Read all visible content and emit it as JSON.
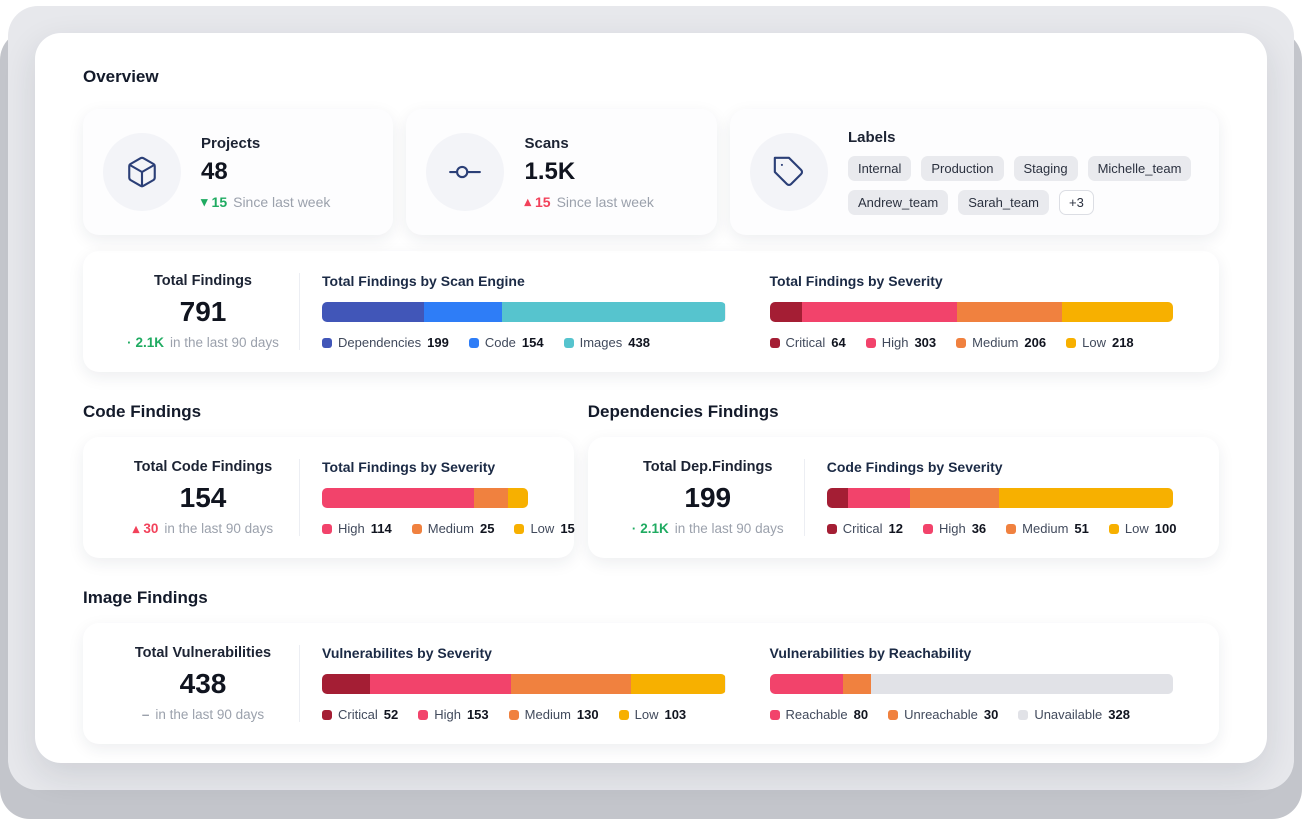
{
  "page": {
    "title": "Overview"
  },
  "stat_cards": {
    "projects": {
      "label": "Projects",
      "value": "48",
      "trend": {
        "marker": "down",
        "value": "15",
        "color": "#1fab61",
        "suffix": "Since last week"
      }
    },
    "scans": {
      "label": "Scans",
      "value": "1.5K",
      "trend": {
        "marker": "up",
        "value": "15",
        "color": "#f2415a",
        "suffix": "Since last week"
      }
    },
    "labels": {
      "label": "Labels",
      "chips": [
        "Internal",
        "Production",
        "Staging",
        "Michelle_team",
        "Andrew_team",
        "Sarah_team",
        "+3"
      ]
    }
  },
  "total_findings": {
    "summary": {
      "label": "Total Findings",
      "value": "791",
      "trend": {
        "marker": "dot",
        "value": "2.1K",
        "color": "#1fab61",
        "suffix": "in the last 90 days"
      }
    },
    "by_scan_engine": {
      "title": "Total Findings by Scan Engine",
      "segments": [
        {
          "label": "Dependencies",
          "value": 199,
          "color": "#4156b8"
        },
        {
          "label": "Code",
          "value": 154,
          "color": "#2e7df7"
        },
        {
          "label": "Images",
          "value": 438,
          "color": "#56c4ce"
        }
      ]
    },
    "by_severity": {
      "title": "Total Findings by Severity",
      "segments": [
        {
          "label": "Critical",
          "value": 64,
          "color": "#a41e34"
        },
        {
          "label": "High",
          "value": 303,
          "color": "#f2436b"
        },
        {
          "label": "Medium",
          "value": 206,
          "color": "#f0813f"
        },
        {
          "label": "Low",
          "value": 218,
          "color": "#f7b000"
        }
      ]
    }
  },
  "code_findings": {
    "section_title": "Code Findings",
    "summary": {
      "label": "Total Code Findings",
      "value": "154",
      "trend": {
        "marker": "up",
        "value": "30",
        "color": "#f2415a",
        "suffix": "in the last 90 days"
      }
    },
    "by_severity": {
      "title": "Total Findings by Severity",
      "segments": [
        {
          "label": "High",
          "value": 114,
          "color": "#f2436b"
        },
        {
          "label": "Medium",
          "value": 25,
          "color": "#f0813f"
        },
        {
          "label": "Low",
          "value": 15,
          "color": "#f7b000"
        }
      ]
    }
  },
  "dependencies_findings": {
    "section_title": "Dependencies Findings",
    "summary": {
      "label": "Total Dep.Findings",
      "value": "199",
      "trend": {
        "marker": "dot",
        "value": "2.1K",
        "color": "#1fab61",
        "suffix": "in the last 90 days"
      }
    },
    "by_severity": {
      "title": "Code Findings by Severity",
      "segments": [
        {
          "label": "Critical",
          "value": 12,
          "color": "#a41e34"
        },
        {
          "label": "High",
          "value": 36,
          "color": "#f2436b"
        },
        {
          "label": "Medium",
          "value": 51,
          "color": "#f0813f"
        },
        {
          "label": "Low",
          "value": 100,
          "color": "#f7b000"
        }
      ]
    }
  },
  "image_findings": {
    "section_title": "Image Findings",
    "summary": {
      "label": "Total Vulnerabilities",
      "value": "438",
      "trend": {
        "marker": "none",
        "value": "–",
        "color": "#9ba1ac",
        "suffix": "in the last 90 days"
      }
    },
    "by_severity": {
      "title": "Vulnerabilites by Severity",
      "segments": [
        {
          "label": "Critical",
          "value": 52,
          "color": "#a41e34"
        },
        {
          "label": "High",
          "value": 153,
          "color": "#f2436b"
        },
        {
          "label": "Medium",
          "value": 130,
          "color": "#f0813f"
        },
        {
          "label": "Low",
          "value": 103,
          "color": "#f7b000"
        }
      ]
    },
    "by_reachability": {
      "title": "Vulnerabilities by Reachability",
      "segments": [
        {
          "label": "Reachable",
          "value": 80,
          "color": "#f2436b"
        },
        {
          "label": "Unreachable",
          "value": 30,
          "color": "#f0813f"
        },
        {
          "label": "Unavailable",
          "value": 328,
          "color": "#e1e2e7"
        }
      ]
    }
  }
}
